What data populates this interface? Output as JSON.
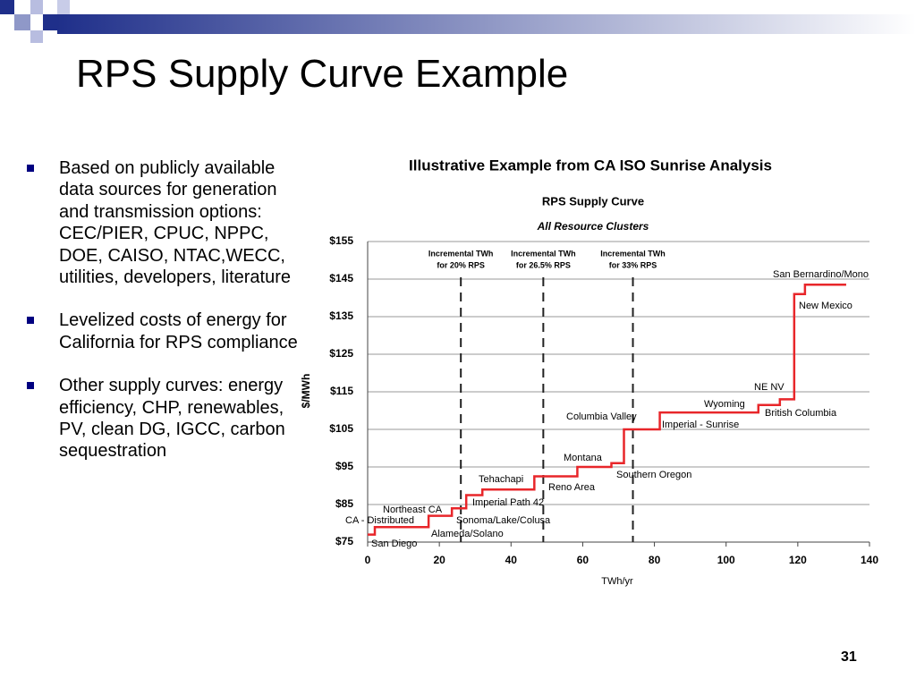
{
  "slide_title": "RPS Supply Curve Example",
  "bullets": [
    "Based on publicly available data sources for generation and transmission options: CEC/PIER, CPUC, NPPC, DOE, CAISO, NTAC,WECC, utilities, developers, literature",
    "Levelized costs of energy for California for RPS compliance",
    "Other supply curves: energy efficiency, CHP, renewables, PV, clean DG, IGCC, carbon sequestration"
  ],
  "page_number": "31",
  "chart_data": {
    "type": "line",
    "caption": "Illustrative Example from CA ISO Sunrise Analysis",
    "title": "RPS Supply Curve",
    "subtitle": "All Resource Clusters",
    "xlabel": "TWh/yr",
    "ylabel": "$/MWh",
    "color": "#e8262a",
    "x": [
      0,
      2,
      2,
      17,
      17,
      23.5,
      23.5,
      27.5,
      27.5,
      32,
      32,
      46.5,
      46.5,
      58.5,
      58.5,
      68,
      68,
      71.5,
      71.5,
      81.5,
      81.5,
      109,
      109,
      115,
      115,
      119,
      119,
      122,
      122,
      133.5
    ],
    "values": [
      77,
      77,
      79,
      79,
      82,
      82,
      84,
      84,
      87.5,
      87.5,
      89,
      89,
      92.5,
      92.5,
      95,
      95,
      96,
      96,
      105,
      105,
      109.5,
      109.5,
      111.5,
      111.5,
      113,
      113,
      141,
      141,
      143.5,
      143.5
    ],
    "xlim": [
      0,
      140
    ],
    "xticks": [
      0,
      20,
      40,
      60,
      80,
      100,
      120,
      140
    ],
    "ylim": [
      75,
      155
    ],
    "yticks": [
      {
        "value": 75,
        "label": "$75"
      },
      {
        "value": 85,
        "label": "$85"
      },
      {
        "value": 95,
        "label": "$95"
      },
      {
        "value": 105,
        "label": "$105"
      },
      {
        "value": 115,
        "label": "$115"
      },
      {
        "value": 125,
        "label": "$125"
      },
      {
        "value": 135,
        "label": "$135"
      },
      {
        "value": 145,
        "label": "$145"
      },
      {
        "value": 155,
        "label": "$155"
      }
    ],
    "grid": true,
    "reference_lines": [
      {
        "x": 26,
        "label": [
          "Incremental TWh",
          "for 20% RPS"
        ]
      },
      {
        "x": 49,
        "label": [
          "Incremental TWh",
          "for 26.5% RPS"
        ]
      },
      {
        "x": 74,
        "label": [
          "Incremental TWh",
          "for 33% RPS"
        ]
      }
    ],
    "annotations": [
      "San Bernardino/Mono",
      "New Mexico",
      "NE NV",
      "Wyoming",
      "British Columbia",
      "Columbia Valley",
      "Imperial - Sunrise",
      "Montana",
      "Southern Oregon",
      "Tehachapi",
      "Reno Area",
      "Imperial Path 42",
      "Northeast CA",
      "CA - Distributed",
      "Sonoma/Lake/Colusa",
      "Alameda/Solano",
      "San Diego"
    ]
  }
}
